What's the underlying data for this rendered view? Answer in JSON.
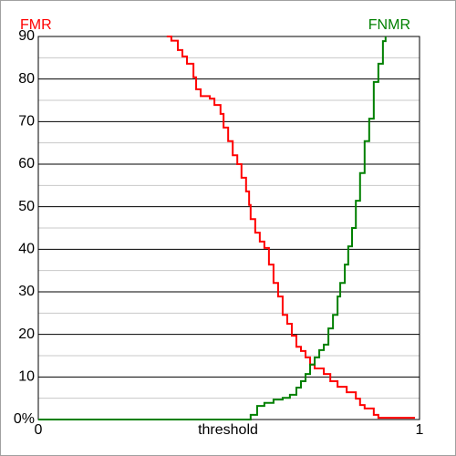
{
  "chart_data": {
    "type": "step",
    "xlabel": "threshold",
    "xlim": [
      0,
      1
    ],
    "xticks": [
      0,
      1
    ],
    "ylim": [
      0,
      90
    ],
    "yticks": [
      {
        "value": 0,
        "label": "0%"
      },
      10,
      20,
      30,
      40,
      50,
      60,
      70,
      80,
      90
    ],
    "minor_yticks": [
      5,
      15,
      25,
      35,
      45,
      55,
      65,
      75,
      85
    ],
    "grid": true,
    "series": [
      {
        "name": "FMR",
        "color": "#ff0000",
        "x": [
          0.337,
          0.349,
          0.366,
          0.378,
          0.39,
          0.407,
          0.414,
          0.426,
          0.45,
          0.462,
          0.478,
          0.486,
          0.498,
          0.51,
          0.522,
          0.533,
          0.545,
          0.553,
          0.557,
          0.569,
          0.581,
          0.593,
          0.605,
          0.617,
          0.629,
          0.641,
          0.653,
          0.665,
          0.677,
          0.689,
          0.701,
          0.713,
          0.725,
          0.749,
          0.766,
          0.785,
          0.809,
          0.833,
          0.844,
          0.856,
          0.88,
          0.892,
          0.988
        ],
        "values": [
          90,
          89,
          86.8,
          85.3,
          83.6,
          80.4,
          77.6,
          76,
          75.4,
          73.9,
          71.8,
          68.6,
          65.4,
          62.1,
          60,
          56.8,
          53.6,
          50.4,
          47.1,
          43.9,
          41.8,
          40.3,
          36.4,
          32.1,
          28.9,
          24.6,
          22.5,
          19.7,
          17.1,
          16.1,
          14.6,
          12.9,
          12,
          10.7,
          9,
          7.7,
          6.4,
          4.9,
          3.4,
          2.6,
          1.1,
          0.4,
          0.4
        ]
      },
      {
        "name": "FNMR",
        "color": "#008000",
        "x": [
          0,
          0.545,
          0.557,
          0.574,
          0.593,
          0.617,
          0.641,
          0.66,
          0.677,
          0.689,
          0.701,
          0.713,
          0.725,
          0.737,
          0.749,
          0.761,
          0.773,
          0.785,
          0.792,
          0.804,
          0.813,
          0.823,
          0.833,
          0.844,
          0.856,
          0.868,
          0.88,
          0.892,
          0.904,
          0.911
        ],
        "values": [
          0,
          0,
          1.1,
          3.2,
          3.9,
          4.7,
          5.1,
          5.8,
          7.5,
          9,
          10.7,
          12.9,
          14.6,
          16.3,
          17.6,
          21.4,
          24.6,
          28.9,
          32.1,
          36.4,
          40.7,
          45,
          51.4,
          57.9,
          65.4,
          70.7,
          79.3,
          83.6,
          88.9,
          90
        ]
      }
    ]
  }
}
